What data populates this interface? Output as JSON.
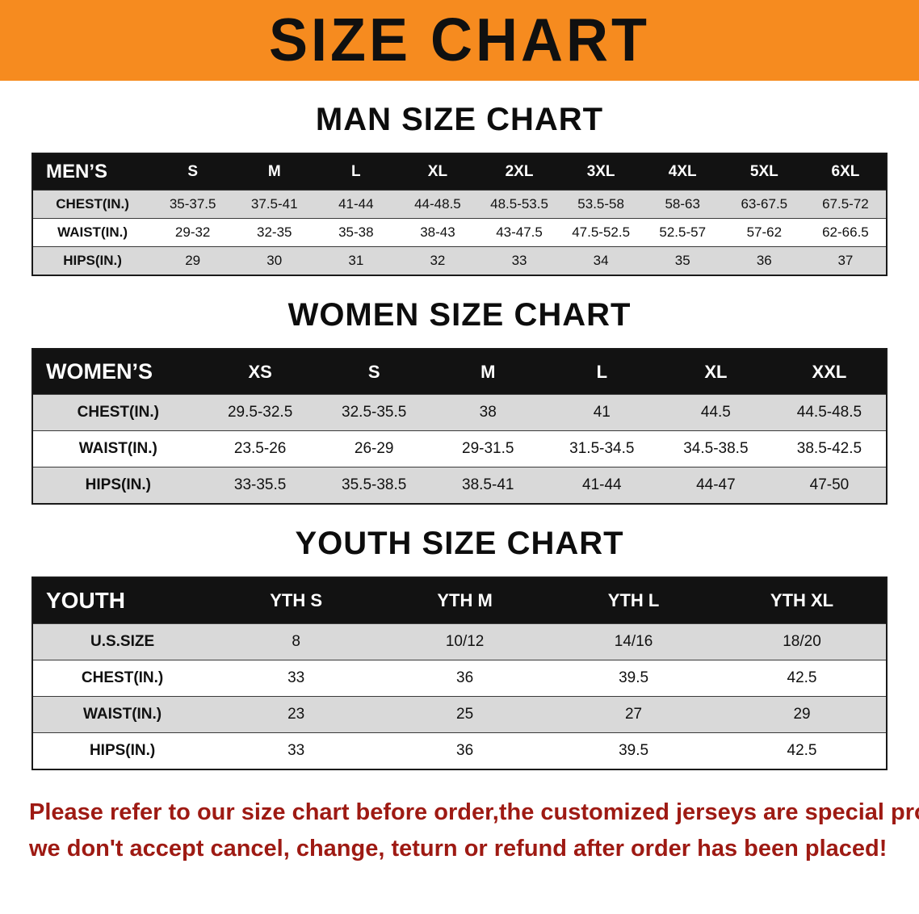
{
  "banner": {
    "title": "SIZE CHART"
  },
  "colors": {
    "banner_bg": "#f68b1f",
    "table_header_bg": "#121212",
    "row_stripe": "#d9d9d9",
    "notice_text": "#9e1a13"
  },
  "sections": [
    {
      "id": "men",
      "title": "MAN SIZE CHART",
      "header_label": "MEN’S",
      "columns": [
        "S",
        "M",
        "L",
        "XL",
        "2XL",
        "3XL",
        "4XL",
        "5XL",
        "6XL"
      ],
      "rows": [
        {
          "label": "CHEST(IN.)",
          "values": [
            "35-37.5",
            "37.5-41",
            "41-44",
            "44-48.5",
            "48.5-53.5",
            "53.5-58",
            "58-63",
            "63-67.5",
            "67.5-72"
          ]
        },
        {
          "label": "WAIST(IN.)",
          "values": [
            "29-32",
            "32-35",
            "35-38",
            "38-43",
            "43-47.5",
            "47.5-52.5",
            "52.5-57",
            "57-62",
            "62-66.5"
          ]
        },
        {
          "label": "HIPS(IN.)",
          "values": [
            "29",
            "30",
            "31",
            "32",
            "33",
            "34",
            "35",
            "36",
            "37"
          ]
        }
      ]
    },
    {
      "id": "women",
      "title": "WOMEN SIZE CHART",
      "header_label": "WOMEN’S",
      "columns": [
        "XS",
        "S",
        "M",
        "L",
        "XL",
        "XXL"
      ],
      "rows": [
        {
          "label": "CHEST(IN.)",
          "values": [
            "29.5-32.5",
            "32.5-35.5",
            "38",
            "41",
            "44.5",
            "44.5-48.5"
          ]
        },
        {
          "label": "WAIST(IN.)",
          "values": [
            "23.5-26",
            "26-29",
            "29-31.5",
            "31.5-34.5",
            "34.5-38.5",
            "38.5-42.5"
          ]
        },
        {
          "label": "HIPS(IN.)",
          "values": [
            "33-35.5",
            "35.5-38.5",
            "38.5-41",
            "41-44",
            "44-47",
            "47-50"
          ]
        }
      ]
    },
    {
      "id": "youth",
      "title": "YOUTH SIZE CHART",
      "header_label": "YOUTH",
      "columns": [
        "YTH S",
        "YTH M",
        "YTH L",
        "YTH XL"
      ],
      "rows": [
        {
          "label": "U.S.SIZE",
          "values": [
            "8",
            "10/12",
            "14/16",
            "18/20"
          ]
        },
        {
          "label": "CHEST(IN.)",
          "values": [
            "33",
            "36",
            "39.5",
            "42.5"
          ]
        },
        {
          "label": "WAIST(IN.)",
          "values": [
            "23",
            "25",
            "27",
            "29"
          ]
        },
        {
          "label": "HIPS(IN.)",
          "values": [
            "33",
            "36",
            "39.5",
            "42.5"
          ]
        }
      ]
    }
  ],
  "footer": {
    "line1": "Please refer to our size chart before order,the customized jerseys are special products,",
    "line2": "we don't accept cancel, change, teturn or refund after order has been placed!"
  }
}
